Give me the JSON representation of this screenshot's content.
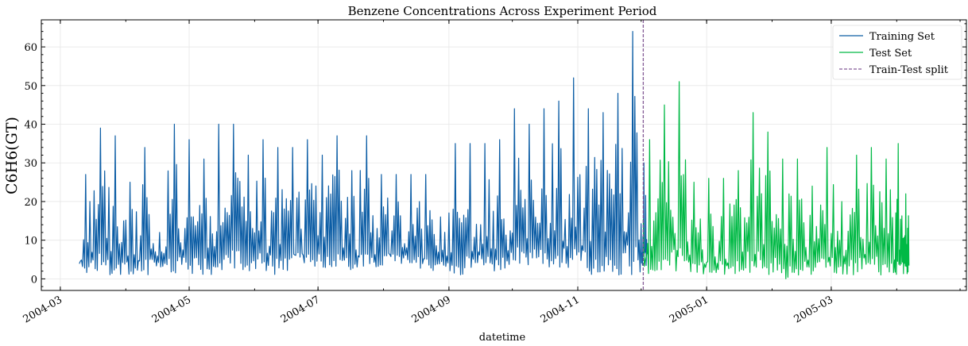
{
  "chart_data": {
    "type": "line",
    "title": "Benzene Concentrations Across Experiment Period",
    "xlabel": "datetime",
    "ylabel": "C6H6(GT)",
    "x_ticks": [
      "2004-03",
      "2004-05",
      "2004-07",
      "2004-09",
      "2004-11",
      "2005-01",
      "2005-03"
    ],
    "y_ticks": [
      0,
      10,
      20,
      30,
      40,
      50,
      60
    ],
    "ylim": [
      -3,
      67
    ],
    "xlim": [
      "2004-02-21",
      "2005-05-04"
    ],
    "grid": true,
    "legend_position": "top-right",
    "split_date": "2004-12-02",
    "split_label": "Train-Test split",
    "colors": {
      "train": "#0c5da5",
      "test": "#00b945",
      "split": "#845b97"
    },
    "series": [
      {
        "name": "Training Set",
        "x": [
          "2004-03-10",
          "2004-03-17",
          "2004-03-24",
          "2004-03-31",
          "2004-04-07",
          "2004-04-14",
          "2004-04-21",
          "2004-04-28",
          "2004-05-05",
          "2004-05-12",
          "2004-05-19",
          "2004-05-26",
          "2004-06-02",
          "2004-06-09",
          "2004-06-16",
          "2004-06-23",
          "2004-06-30",
          "2004-07-07",
          "2004-07-14",
          "2004-07-21",
          "2004-07-28",
          "2004-08-04",
          "2004-08-11",
          "2004-08-18",
          "2004-08-25",
          "2004-09-01",
          "2004-09-08",
          "2004-09-15",
          "2004-09-22",
          "2004-09-29",
          "2004-10-06",
          "2004-10-13",
          "2004-10-20",
          "2004-10-27",
          "2004-11-03",
          "2004-11-10",
          "2004-11-17",
          "2004-11-24",
          "2004-12-01"
        ],
        "max": [
          27,
          39,
          37,
          25,
          34,
          12,
          40,
          36,
          31,
          40,
          40,
          32,
          36,
          34,
          34,
          36,
          32,
          37,
          28,
          37,
          27,
          27,
          27,
          27,
          16,
          35,
          35,
          35,
          36,
          44,
          40,
          44,
          46,
          52,
          44,
          43,
          48,
          64,
          30
        ],
        "min": [
          1,
          1,
          1,
          1,
          1,
          3,
          1,
          1,
          1,
          1,
          2,
          1,
          2,
          1,
          2,
          2,
          2,
          3,
          2,
          2,
          3,
          3,
          3,
          2,
          3,
          1,
          1,
          2,
          2,
          2,
          2,
          2,
          3,
          1,
          1,
          1,
          1,
          1,
          3
        ]
      },
      {
        "name": "Test Set",
        "x": [
          "2004-12-02",
          "2004-12-09",
          "2004-12-16",
          "2004-12-23",
          "2004-12-30",
          "2005-01-06",
          "2005-01-13",
          "2005-01-20",
          "2005-01-27",
          "2005-02-03",
          "2005-02-10",
          "2005-02-17",
          "2005-02-24",
          "2005-03-03",
          "2005-03-10",
          "2005-03-17",
          "2005-03-24",
          "2005-03-31",
          "2005-04-04"
        ],
        "max": [
          36,
          45,
          51,
          25,
          26,
          26,
          28,
          43,
          38,
          31,
          31,
          24,
          34,
          20,
          32,
          34,
          31,
          35,
          22
        ],
        "min": [
          1,
          1,
          1,
          1,
          1,
          1,
          1,
          1,
          1,
          0,
          1,
          1,
          1,
          1,
          1,
          1,
          1,
          1,
          1
        ]
      }
    ]
  }
}
